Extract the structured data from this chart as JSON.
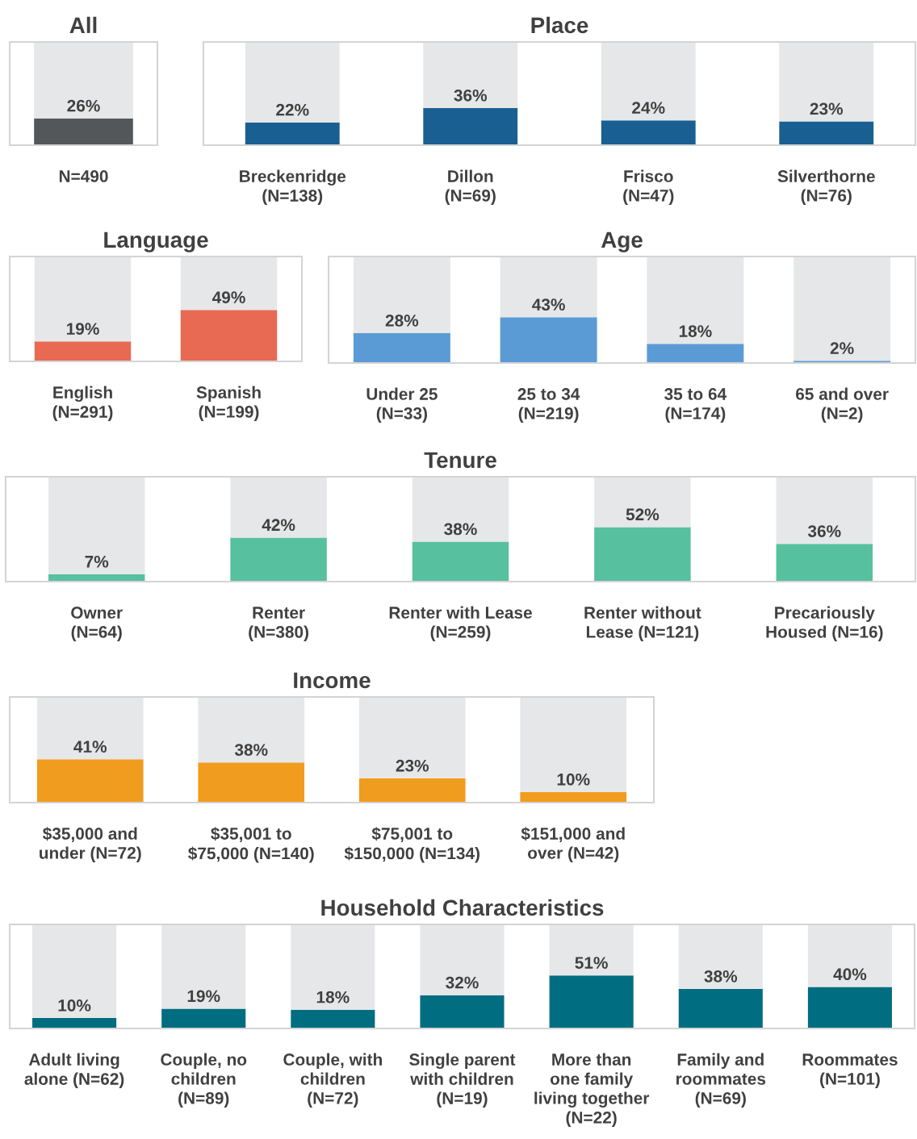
{
  "chart_data": [
    {
      "type": "bar",
      "title": "All",
      "categories": [
        "N=490"
      ],
      "stacked": true,
      "ylim": [
        0,
        100
      ],
      "tick_labels": "x",
      "grid": false,
      "legend": false,
      "series": [
        {
          "color": "#53575a",
          "values": [
            26
          ],
          "value_labels": [
            "26%"
          ]
        },
        {
          "color": "#e6e7e8",
          "values": [
            74
          ]
        }
      ]
    },
    {
      "type": "bar",
      "title": "Place",
      "categories": [
        "Breckenridge\n(N=138)",
        "Dillon\n(N=69)",
        "Frisco\n(N=47)",
        "Silverthorne\n(N=76)"
      ],
      "stacked": true,
      "ylim": [
        0,
        100
      ],
      "tick_labels": "x",
      "grid": false,
      "legend": false,
      "series": [
        {
          "color": "#1a5f92",
          "values": [
            22,
            36,
            24,
            23
          ],
          "value_labels": [
            "22%",
            "36%",
            "24%",
            "23%"
          ]
        },
        {
          "color": "#e6e7e8",
          "values": [
            78,
            64,
            76,
            77
          ]
        }
      ]
    },
    {
      "type": "bar",
      "title": "Language",
      "categories": [
        "English\n(N=291)",
        "Spanish\n(N=199)"
      ],
      "stacked": true,
      "ylim": [
        0,
        100
      ],
      "tick_labels": "x",
      "grid": false,
      "legend": false,
      "series": [
        {
          "color": "#e96a52",
          "values": [
            19,
            49
          ],
          "value_labels": [
            "19%",
            "49%"
          ]
        },
        {
          "color": "#e6e7e8",
          "values": [
            81,
            51
          ]
        }
      ]
    },
    {
      "type": "bar",
      "title": "Age",
      "categories": [
        "Under 25\n(N=33)",
        "25 to 34\n(N=219)",
        "35 to 64\n(N=174)",
        "65 and over\n(N=2)"
      ],
      "stacked": true,
      "ylim": [
        0,
        100
      ],
      "tick_labels": "x",
      "grid": false,
      "legend": false,
      "series": [
        {
          "color": "#5b9bd5",
          "values": [
            28,
            43,
            18,
            2
          ],
          "value_labels": [
            "28%",
            "43%",
            "18%",
            "2%"
          ]
        },
        {
          "color": "#e6e7e8",
          "values": [
            72,
            57,
            82,
            98
          ]
        }
      ]
    },
    {
      "type": "bar",
      "title": "Tenure",
      "categories": [
        "Owner\n(N=64)",
        "Renter\n(N=380)",
        "Renter with Lease\n(N=259)",
        "Renter without\nLease (N=121)",
        "Precariously\nHoused (N=16)"
      ],
      "stacked": true,
      "ylim": [
        0,
        100
      ],
      "tick_labels": "x",
      "grid": false,
      "legend": false,
      "series": [
        {
          "color": "#57c09e",
          "values": [
            7,
            42,
            38,
            52,
            36
          ],
          "value_labels": [
            "7%",
            "42%",
            "38%",
            "52%",
            "36%"
          ]
        },
        {
          "color": "#e6e7e8",
          "values": [
            93,
            58,
            62,
            48,
            64
          ]
        }
      ]
    },
    {
      "type": "bar",
      "title": "Income",
      "categories": [
        "$35,000 and\nunder (N=72)",
        "$35,001 to\n$75,000 (N=140)",
        "$75,001 to\n$150,000 (N=134)",
        "$151,000 and\nover (N=42)"
      ],
      "stacked": true,
      "ylim": [
        0,
        100
      ],
      "tick_labels": "x",
      "grid": false,
      "legend": false,
      "series": [
        {
          "color": "#f09c1e",
          "values": [
            41,
            38,
            23,
            10
          ],
          "value_labels": [
            "41%",
            "38%",
            "23%",
            "10%"
          ]
        },
        {
          "color": "#e6e7e8",
          "values": [
            59,
            62,
            77,
            90
          ]
        }
      ]
    },
    {
      "type": "bar",
      "title": "Household Characteristics",
      "categories": [
        "Adult living\nalone (N=62)",
        "Couple, no\nchildren\n(N=89)",
        "Couple, with\nchildren\n(N=72)",
        "Single parent\nwith children\n(N=19)",
        "More than\none family\nliving together\n(N=22)",
        "Family and\nroommates\n(N=69)",
        "Roommates\n(N=101)"
      ],
      "stacked": true,
      "ylim": [
        0,
        100
      ],
      "tick_labels": "x",
      "grid": false,
      "legend": false,
      "series": [
        {
          "color": "#006d80",
          "values": [
            10,
            19,
            18,
            32,
            51,
            38,
            40
          ],
          "value_labels": [
            "10%",
            "19%",
            "18%",
            "32%",
            "51%",
            "38%",
            "40%"
          ]
        },
        {
          "color": "#e6e7e8",
          "values": [
            90,
            81,
            82,
            68,
            49,
            62,
            60
          ]
        }
      ]
    }
  ]
}
